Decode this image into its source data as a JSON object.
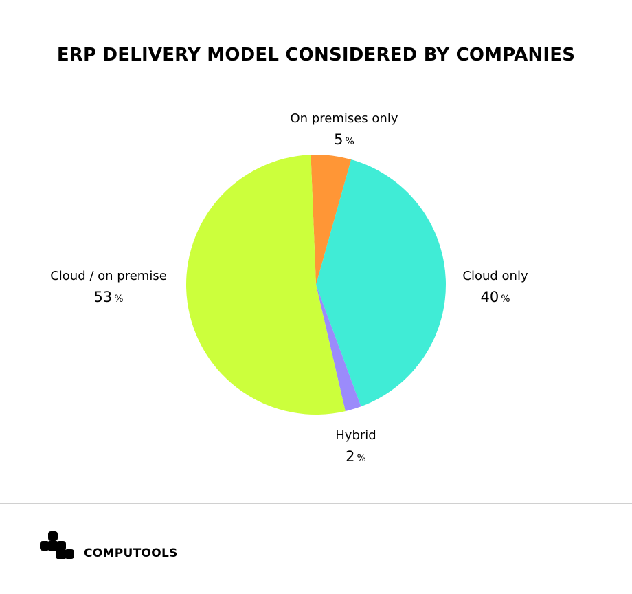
{
  "title": "ERP DELIVERY MODEL CONSIDERED BY COMPANIES",
  "brand": {
    "name": "COMPUTOOLS",
    "logo_icon": "computools-logo-icon"
  },
  "chart_data": {
    "type": "pie",
    "title": "ERP DELIVERY MODEL CONSIDERED BY COMPANIES",
    "unit": "%",
    "slices": [
      {
        "label": "On premises only",
        "value": 5,
        "color": "#FF9636"
      },
      {
        "label": "Cloud only",
        "value": 40,
        "color": "#40ECD6"
      },
      {
        "label": "Hybrid",
        "value": 2,
        "color": "#9B8BFB"
      },
      {
        "label": "Cloud / on premise",
        "value": 53,
        "color": "#CCFF3C"
      }
    ]
  }
}
